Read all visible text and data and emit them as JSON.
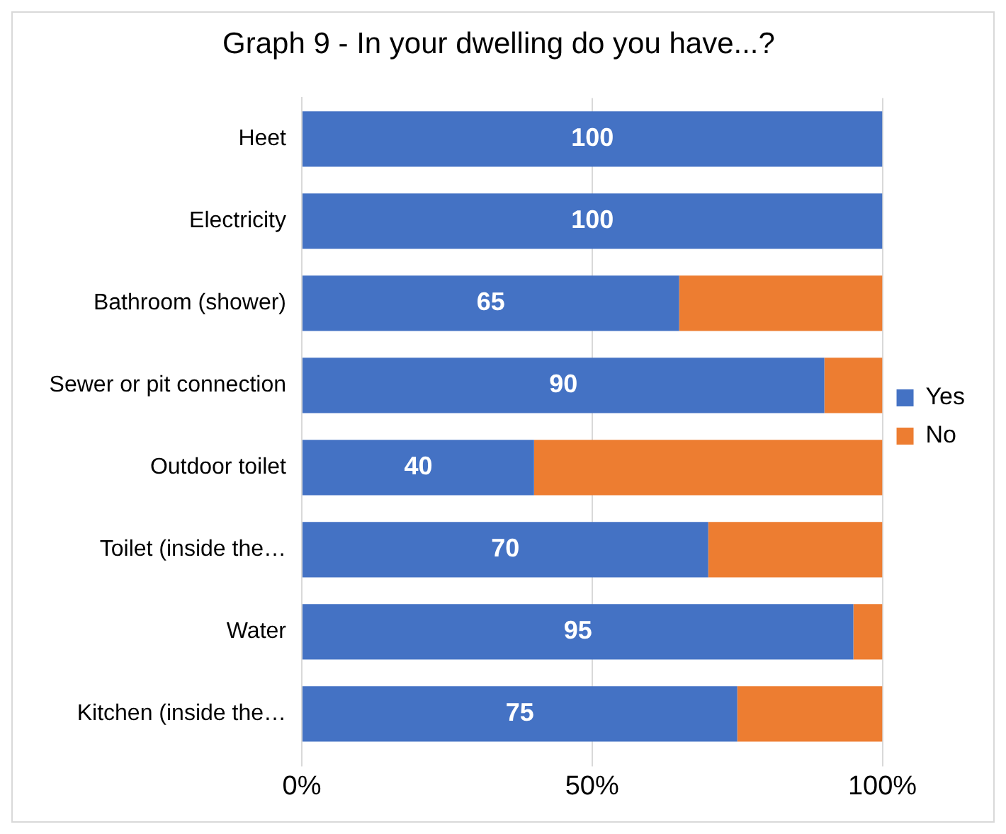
{
  "chart_data": {
    "type": "bar",
    "title": "Graph 9 - In your dwelling do you have...?",
    "orientation": "horizontal",
    "stacked": true,
    "categories": [
      "Heet",
      "Electricity",
      "Bathroom (shower)",
      "Sewer or pit connection",
      "Outdoor toilet",
      "Toilet (inside the…",
      "Water",
      "Kitchen (inside the…"
    ],
    "series": [
      {
        "name": "Yes",
        "color": "#4472c4",
        "values": [
          100,
          100,
          65,
          90,
          40,
          70,
          95,
          75
        ],
        "value_labels": [
          "100",
          "100",
          "65",
          "90",
          "40",
          "70",
          "95",
          "75"
        ]
      },
      {
        "name": "No",
        "color": "#ed7d31",
        "values": [
          0,
          0,
          35,
          10,
          60,
          30,
          5,
          25
        ]
      }
    ],
    "xlim": [
      0,
      100
    ],
    "xticks": [
      {
        "value": 0,
        "label": "0%"
      },
      {
        "value": 50,
        "label": "50%"
      },
      {
        "value": 100,
        "label": "100%"
      }
    ],
    "grid": "x",
    "legend": "right"
  }
}
